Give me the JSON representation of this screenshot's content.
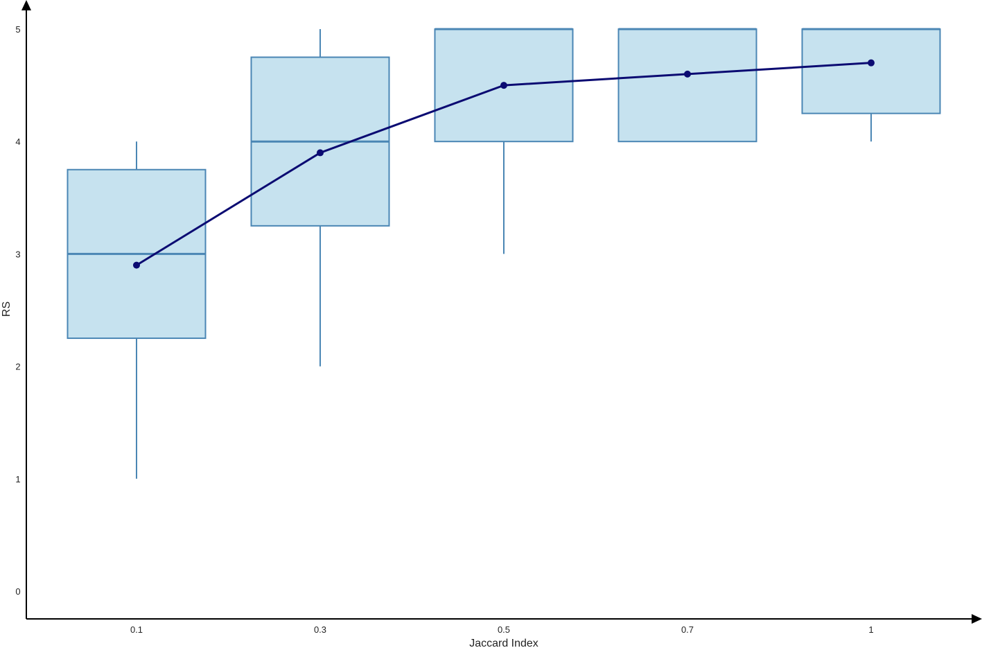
{
  "chart_data": {
    "type": "box",
    "xlabel": "Jaccard Index",
    "ylabel": "RS",
    "ylim": [
      -0.25,
      5.25
    ],
    "y_ticks": [
      0,
      1,
      2,
      3,
      4,
      5
    ],
    "categories": [
      "0.1",
      "0.3",
      "0.5",
      "0.7",
      "1"
    ],
    "boxes": [
      {
        "category": "0.1",
        "whisker_low": 1,
        "q1": 2.25,
        "median": 3,
        "q3": 3.75,
        "whisker_high": 4
      },
      {
        "category": "0.3",
        "whisker_low": 2,
        "q1": 3.25,
        "median": 4,
        "q3": 4.75,
        "whisker_high": 5
      },
      {
        "category": "0.5",
        "whisker_low": 3,
        "q1": 4,
        "median": 5,
        "q3": 5,
        "whisker_high": 5
      },
      {
        "category": "0.7",
        "whisker_low": 4,
        "q1": 4,
        "median": 5,
        "q3": 5,
        "whisker_high": 5
      },
      {
        "category": "1",
        "whisker_low": 4,
        "q1": 4.25,
        "median": 5,
        "q3": 5,
        "whisker_high": 5
      }
    ],
    "mean_line": {
      "values": [
        2.9,
        3.9,
        4.5,
        4.6,
        4.7
      ]
    },
    "colors": {
      "box_fill": "#c6e2ef",
      "box_stroke": "#4a86b4",
      "mean_line": "#0b0b72",
      "axis": "#000000"
    },
    "grid": false,
    "legend": "none"
  }
}
